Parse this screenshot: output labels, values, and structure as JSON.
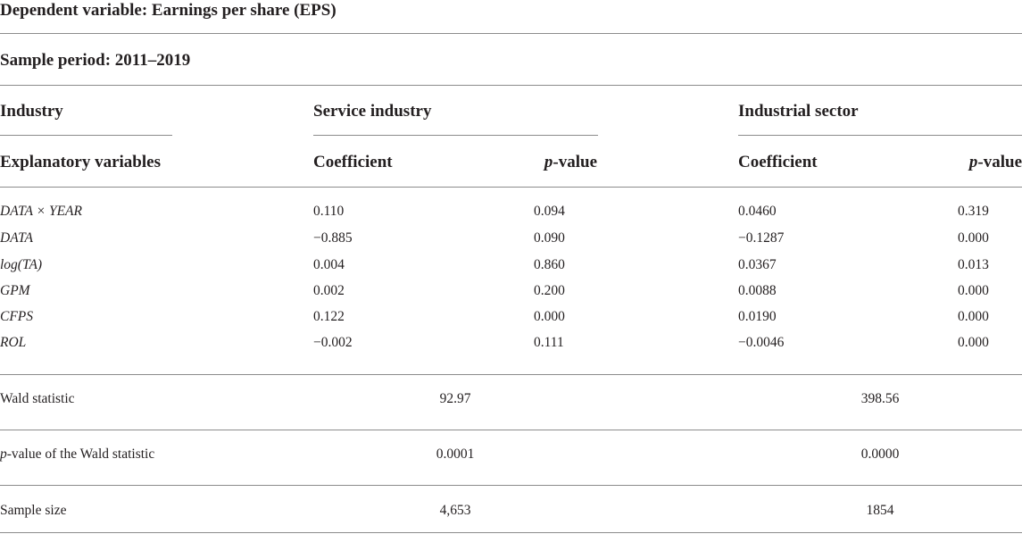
{
  "title": "Dependent variable: Earnings per share (EPS)",
  "sample_period": "Sample period: 2011–2019",
  "header": {
    "industry_label": "Industry",
    "service_label": "Service industry",
    "industrial_label": "Industrial sector",
    "explanatory_label": "Explanatory variables",
    "coefficient_label": "Coefficient",
    "pvalue_italic": "p",
    "pvalue_rest": "-value"
  },
  "rows": [
    {
      "variable": "DATA × YEAR",
      "service_coef": "0.110",
      "service_p": "0.094",
      "industrial_coef": "0.0460",
      "industrial_p": "0.319"
    },
    {
      "variable": "DATA",
      "service_coef": "−0.885",
      "service_p": "0.090",
      "industrial_coef": "−0.1287",
      "industrial_p": "0.000"
    },
    {
      "variable": "log(TA)",
      "service_coef": "0.004",
      "service_p": "0.860",
      "industrial_coef": "0.0367",
      "industrial_p": "0.013"
    },
    {
      "variable": "GPM",
      "service_coef": "0.002",
      "service_p": "0.200",
      "industrial_coef": "0.0088",
      "industrial_p": "0.000"
    },
    {
      "variable": "CFPS",
      "service_coef": "0.122",
      "service_p": "0.000",
      "industrial_coef": "0.0190",
      "industrial_p": "0.000"
    },
    {
      "variable": "ROL",
      "service_coef": "−0.002",
      "service_p": "0.111",
      "industrial_coef": "−0.0046",
      "industrial_p": "0.000"
    }
  ],
  "stats": {
    "wald_label": "Wald statistic",
    "wald_service": "92.97",
    "wald_industrial": "398.56",
    "wald_p_italic": "p",
    "wald_p_rest": "-value of the Wald statistic",
    "wald_p_service": "0.0001",
    "wald_p_industrial": "0.0000",
    "sample_label": "Sample size",
    "sample_service": "4,653",
    "sample_industrial": "1854"
  }
}
